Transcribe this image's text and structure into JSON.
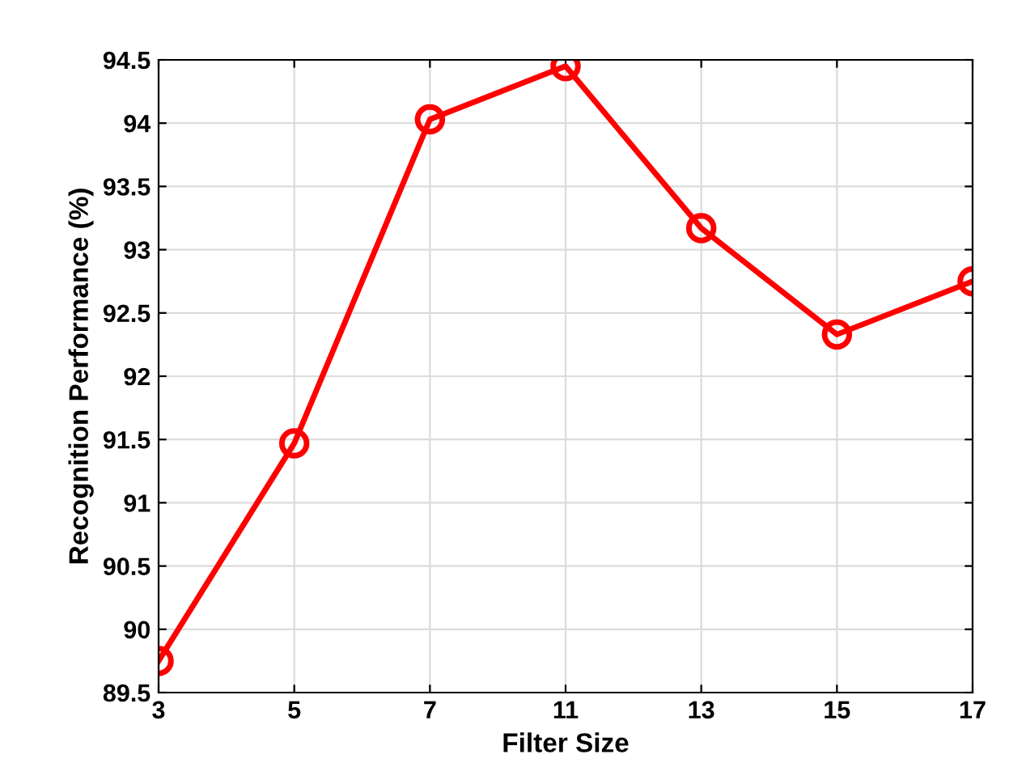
{
  "chart_data": {
    "type": "line",
    "xlabel": "Filter Size",
    "ylabel": "Recognition Performance (%)",
    "categories": [
      "3",
      "5",
      "7",
      "11",
      "13",
      "15",
      "17"
    ],
    "series": [
      {
        "color": "#ff0000",
        "values": [
          89.75,
          91.47,
          94.03,
          94.45,
          93.17,
          92.33,
          92.75
        ]
      }
    ],
    "ylim": [
      89.5,
      94.5
    ],
    "yticks": [
      89.5,
      90,
      90.5,
      91,
      91.5,
      92,
      92.5,
      93,
      93.5,
      94,
      94.5
    ],
    "grid": true,
    "marker": "circle",
    "line_style": "solid"
  }
}
